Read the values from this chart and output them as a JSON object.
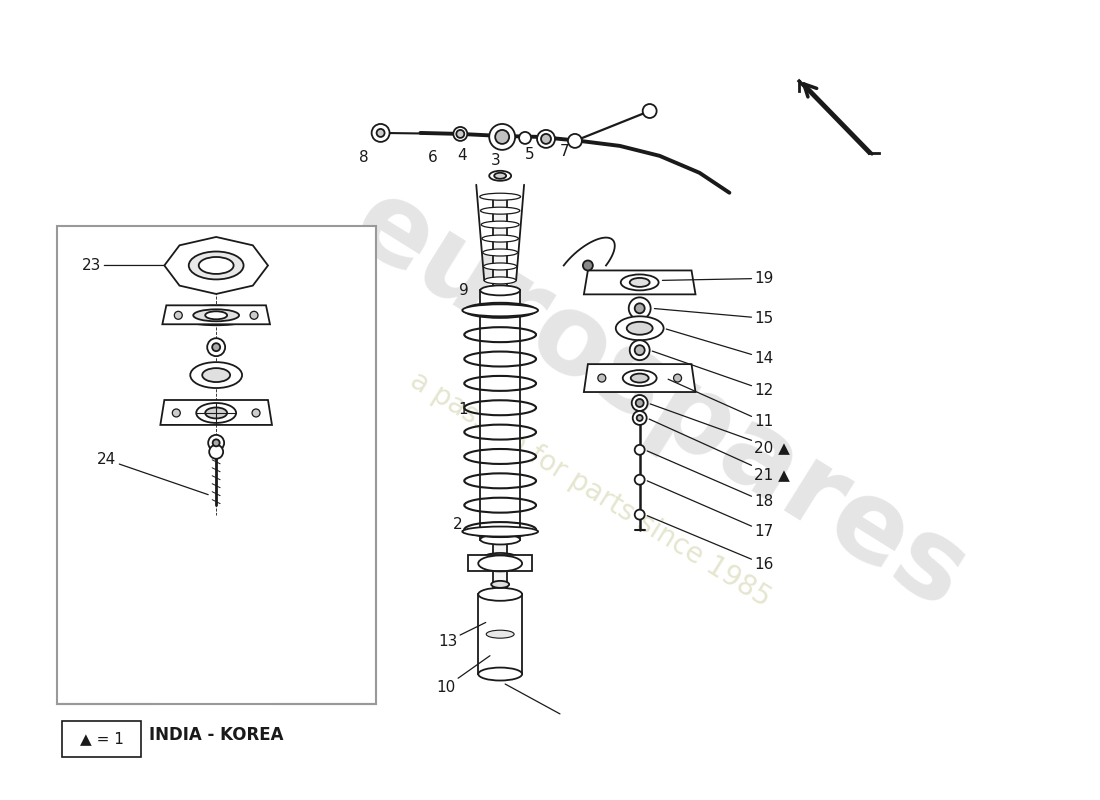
{
  "bg_color": "#ffffff",
  "line_color": "#1a1a1a",
  "india_korea_label": "INDIA - KOREA",
  "legend_label": "▲ = 1"
}
